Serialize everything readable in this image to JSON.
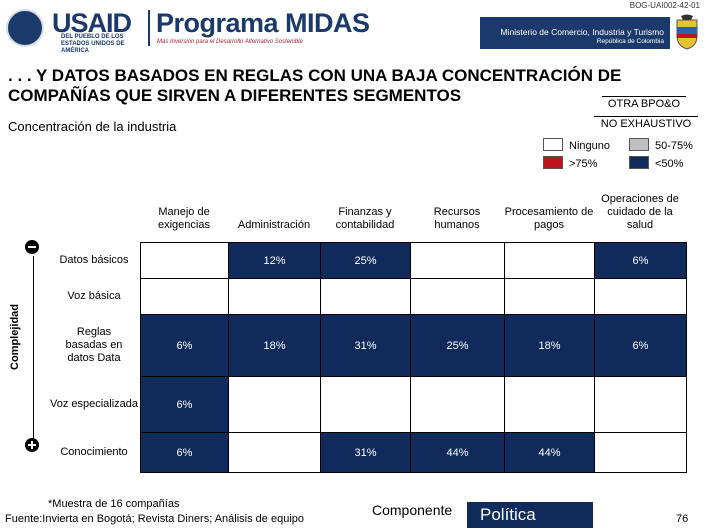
{
  "header": {
    "reference": "BOG-UAI002-42-01",
    "usaid_logo": "USAID",
    "usaid_subtitle": "DEL PUEBLO DE LOS ESTADOS UNIDOS DE AMÉRICA",
    "program_name": "Programa MIDAS",
    "program_subtitle": "Más Inversión para el Desarrollo Alternativo Sostenible",
    "ministry": "Ministerio de Comercio, Industria y Turismo",
    "republic": "República de Colombia"
  },
  "title": ". . . Y DATOS BASADOS EN REGLAS CON UNA BAJA CONCENTRACIÓN DE COMPAÑÍAS QUE SIRVEN A DIFERENTES SEGMENTOS",
  "tags": [
    "OTRA BPO&O",
    "NO EXHAUSTIVO"
  ],
  "subtitle": "Concentración de la industria",
  "legend": [
    {
      "label": "Ninguno",
      "color": "#ffffff"
    },
    {
      "label": "50-75%",
      "color": "#c0c0c0"
    },
    {
      "label": ">75%",
      "color": "#c0141c"
    },
    {
      "label": "<50%",
      "color": "#0f2a5b"
    }
  ],
  "columns": [
    "Manejo de exigencias",
    "Administración",
    "Finanzas y contabilidad",
    "Recursos humanos",
    "Procesamiento de pagos",
    "Operaciones de cuidado de la salud"
  ],
  "axis_label": "Complejidad",
  "rows": [
    {
      "label": "Datos básicos",
      "cells": [
        "",
        "12%",
        "25%",
        "",
        "",
        "6%"
      ]
    },
    {
      "label": "Voz básica",
      "cells": [
        "",
        "",
        "",
        "",
        "",
        ""
      ]
    },
    {
      "label": "Reglas basadas en datos Data",
      "cells": [
        "6%",
        "18%",
        "31%",
        "25%",
        "18%",
        "6%"
      ]
    },
    {
      "label": "Voz especializada",
      "cells": [
        "6%",
        "",
        "",
        "",
        "",
        ""
      ]
    },
    {
      "label": "Conocimiento",
      "cells": [
        "6%",
        "",
        "31%",
        "44%",
        "44%",
        ""
      ]
    }
  ],
  "footer": {
    "note": "*Muestra de 16 compañías",
    "source": "Fuente:Invierta en Bogotá; Revista Diners; Análisis de equipo",
    "component": "Componente",
    "policy": "Política",
    "page": "76"
  }
}
